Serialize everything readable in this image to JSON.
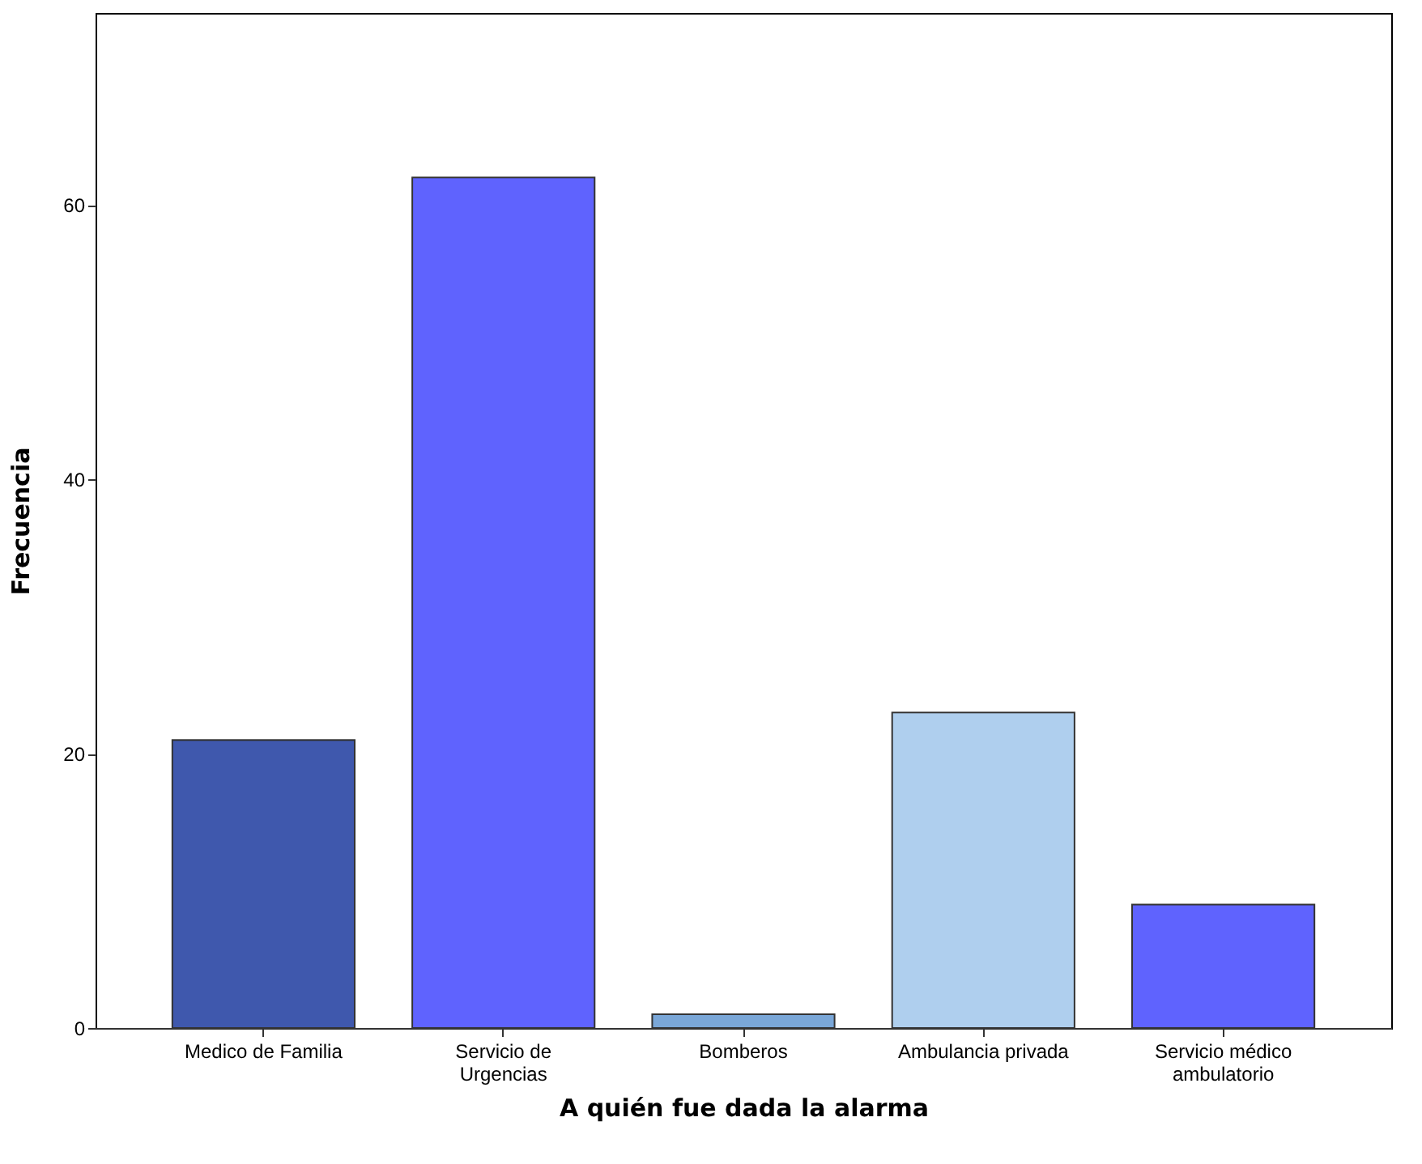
{
  "chart_data": {
    "type": "bar",
    "xlabel": "A quién fue dada la alarma",
    "ylabel": "Frecuencia",
    "categories": [
      "Medico de Familia",
      "Servicio de Urgencias",
      "Bomberos",
      "Ambulancia privada",
      "Servicio médico ambulatorio"
    ],
    "values": [
      21,
      62,
      1,
      23,
      9
    ],
    "colors": [
      "#3f58ad",
      "#5f63fe",
      "#7aa7d8",
      "#afcfee",
      "#5f63fe"
    ],
    "ylim": [
      0,
      74
    ],
    "yticks": [
      0,
      20,
      40,
      60
    ],
    "grid": false
  }
}
